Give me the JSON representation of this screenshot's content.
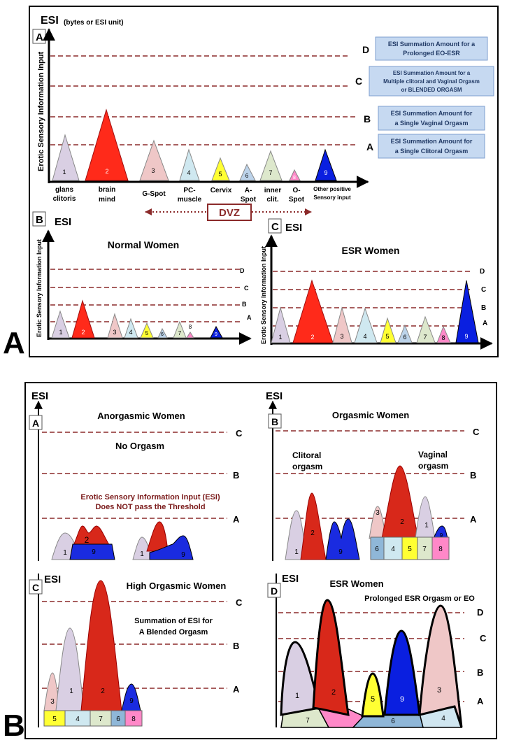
{
  "figure_A": {
    "big_label": "A",
    "panel_A": {
      "letter": "A",
      "esi": "ESI",
      "esi_unit": "(bytes or ESI unit)",
      "y_axis_label": "Erotic Sensory Information Input",
      "thresholds": [
        "D",
        "C",
        "B",
        "A"
      ],
      "threshold_boxes": [
        {
          "line1": "ESI Summation Amount  for a",
          "line2": "Prolonged EO-ESR",
          "line3": ""
        },
        {
          "line1": "ESI Summation Amount  for a",
          "line2": "Multiple clitoral and Vaginal Orgasm",
          "line3": "or  BLENDED ORGASM"
        },
        {
          "line1": "ESI Summation Amount for",
          "line2": "a Single Vaginal  Orgasm",
          "line3": ""
        },
        {
          "line1": "ESI Summation Amount  for",
          "line2": "a Single Clitoral Orgasm",
          "line3": ""
        }
      ],
      "peaks": [
        {
          "num": "1",
          "label1": "glans",
          "label2": "clitoris",
          "color": "#d9cfe3"
        },
        {
          "num": "2",
          "label1": "brain",
          "label2": "mind",
          "color": "#ff2a1a"
        },
        {
          "num": "3",
          "label1": "G-Spot",
          "label2": "",
          "color": "#efc7c7"
        },
        {
          "num": "4",
          "label1": "PC-",
          "label2": "muscle",
          "color": "#cfe8f0"
        },
        {
          "num": "5",
          "label1": "Cervix",
          "label2": "",
          "color": "#ffff33"
        },
        {
          "num": "6",
          "label1": "A-",
          "label2": "Spot",
          "color": "#bcd3ea"
        },
        {
          "num": "7",
          "label1": "inner",
          "label2": "clit.",
          "color": "#dde8cc"
        },
        {
          "num": "8",
          "label1": "O-",
          "label2": "Spot",
          "color": "#ff88c8"
        },
        {
          "num": "9",
          "label1": "Other positive",
          "label2": "Sensory input",
          "color": "#0a1fe0"
        }
      ],
      "dvz": "DVZ"
    },
    "panel_B": {
      "letter": "B",
      "esi": "ESI",
      "y_axis_label": "Erotic Sensory Information Input",
      "title": "Normal Women",
      "thresholds": [
        "D",
        "C",
        "B",
        "A"
      ],
      "peak_nums": [
        "1",
        "2",
        "3",
        "4",
        "5",
        "6",
        "7",
        "8",
        "9"
      ]
    },
    "panel_C": {
      "letter": "C",
      "esi": "ESI",
      "y_axis_label": "Erotic Sensory Information Input",
      "title": "ESR Women",
      "thresholds": [
        "D",
        "C",
        "B",
        "A"
      ],
      "peak_nums": [
        "1",
        "2",
        "3",
        "4",
        "5",
        "6",
        "7",
        "8",
        "9"
      ]
    }
  },
  "figure_B": {
    "big_label": "B",
    "panel_A": {
      "letter": "A",
      "esi": "ESI",
      "title": "Anorgasmic Women",
      "subtitle": "No Orgasm",
      "note_line1": "Erotic Sensory Information Input (ESI)",
      "note_line2": "Does NOT pass the Threshold",
      "thresholds": [
        "C",
        "B",
        "A"
      ],
      "nums": [
        "1",
        "2",
        "9",
        "1",
        "9"
      ]
    },
    "panel_B": {
      "letter": "B",
      "esi": "ESI",
      "title": "Orgasmic Women",
      "clitoral_1": "Clitoral",
      "clitoral_2": "orgasm",
      "vaginal_1": "Vaginal",
      "vaginal_2": "orgasm",
      "thresholds": [
        "C",
        "B",
        "A"
      ],
      "peak_nums": [
        "1",
        "2",
        "9",
        "3",
        "2",
        "1",
        "9"
      ],
      "blocks": [
        "6",
        "4",
        "5",
        "7",
        "8"
      ]
    },
    "panel_C": {
      "letter": "C",
      "esi": "ESI",
      "title": "High Orgasmic Women",
      "note_line1": "Summation of ESI for",
      "note_line2": "A Blended Orgasm",
      "thresholds": [
        "C",
        "B",
        "A"
      ],
      "peak_nums": [
        "3",
        "1",
        "2",
        "9"
      ],
      "blocks": [
        "5",
        "4",
        "7",
        "6",
        "8"
      ]
    },
    "panel_D": {
      "letter": "D",
      "esi": "ESI",
      "title": "ESR Women",
      "subtitle": "Prolonged ESR Orgasm or EO",
      "thresholds": [
        "D",
        "C",
        "B",
        "A"
      ],
      "peak_nums": [
        "1",
        "2",
        "5",
        "9",
        "3"
      ],
      "base_nums": [
        "7",
        "6",
        "4"
      ]
    }
  },
  "colors": {
    "threshold_line": "#8b2a2a",
    "box_fill": "#c6d9f1",
    "box_border": "#7f9fcf",
    "box_text": "#1f3864",
    "axis": "#000000",
    "dvz": "#8b2a2a",
    "note_text": "#7a1a1a"
  }
}
